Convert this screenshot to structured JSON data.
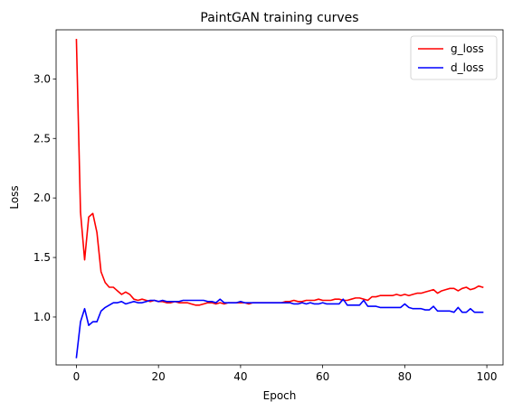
{
  "chart_data": {
    "type": "line",
    "title": "PaintGAN training curves",
    "xlabel": "Epoch",
    "ylabel": "Loss",
    "xlim": [
      -4.95,
      103.95
    ],
    "ylim": [
      0.5975,
      3.4125
    ],
    "xticks": [
      0,
      20,
      40,
      60,
      80,
      100
    ],
    "yticks": [
      1.0,
      1.5,
      2.0,
      2.5,
      3.0
    ],
    "ytick_labels": [
      "1.0",
      "1.5",
      "2.0",
      "2.5",
      "3.0"
    ],
    "grid": false,
    "legend_position": "top-right",
    "series": [
      {
        "name": "g_loss",
        "color": "#ff0000",
        "x": [
          0,
          1,
          2,
          3,
          4,
          5,
          6,
          7,
          8,
          9,
          10,
          11,
          12,
          13,
          14,
          15,
          16,
          17,
          18,
          19,
          20,
          21,
          22,
          23,
          24,
          25,
          26,
          27,
          28,
          29,
          30,
          31,
          32,
          33,
          34,
          35,
          36,
          37,
          38,
          39,
          40,
          41,
          42,
          43,
          44,
          45,
          46,
          47,
          48,
          49,
          50,
          51,
          52,
          53,
          54,
          55,
          56,
          57,
          58,
          59,
          60,
          61,
          62,
          63,
          64,
          65,
          66,
          67,
          68,
          69,
          70,
          71,
          72,
          73,
          74,
          75,
          76,
          77,
          78,
          79,
          80,
          81,
          82,
          83,
          84,
          85,
          86,
          87,
          88,
          89,
          90,
          91,
          92,
          93,
          94,
          95,
          96,
          97,
          98,
          99
        ],
        "values": [
          3.33,
          1.88,
          1.48,
          1.84,
          1.87,
          1.71,
          1.38,
          1.29,
          1.25,
          1.25,
          1.22,
          1.19,
          1.21,
          1.19,
          1.15,
          1.14,
          1.15,
          1.14,
          1.13,
          1.14,
          1.13,
          1.13,
          1.12,
          1.12,
          1.13,
          1.12,
          1.12,
          1.12,
          1.11,
          1.1,
          1.1,
          1.11,
          1.12,
          1.12,
          1.11,
          1.12,
          1.11,
          1.12,
          1.12,
          1.12,
          1.12,
          1.12,
          1.11,
          1.12,
          1.12,
          1.12,
          1.12,
          1.12,
          1.12,
          1.12,
          1.12,
          1.13,
          1.13,
          1.14,
          1.13,
          1.13,
          1.14,
          1.14,
          1.14,
          1.15,
          1.14,
          1.14,
          1.14,
          1.15,
          1.15,
          1.14,
          1.14,
          1.15,
          1.16,
          1.16,
          1.15,
          1.14,
          1.17,
          1.17,
          1.18,
          1.18,
          1.18,
          1.18,
          1.19,
          1.18,
          1.19,
          1.18,
          1.19,
          1.2,
          1.2,
          1.21,
          1.22,
          1.23,
          1.2,
          1.22,
          1.23,
          1.24,
          1.24,
          1.22,
          1.24,
          1.25,
          1.23,
          1.24,
          1.26,
          1.25
        ]
      },
      {
        "name": "d_loss",
        "color": "#0000ff",
        "x": [
          0,
          1,
          2,
          3,
          4,
          5,
          6,
          7,
          8,
          9,
          10,
          11,
          12,
          13,
          14,
          15,
          16,
          17,
          18,
          19,
          20,
          21,
          22,
          23,
          24,
          25,
          26,
          27,
          28,
          29,
          30,
          31,
          32,
          33,
          34,
          35,
          36,
          37,
          38,
          39,
          40,
          41,
          42,
          43,
          44,
          45,
          46,
          47,
          48,
          49,
          50,
          51,
          52,
          53,
          54,
          55,
          56,
          57,
          58,
          59,
          60,
          61,
          62,
          63,
          64,
          65,
          66,
          67,
          68,
          69,
          70,
          71,
          72,
          73,
          74,
          75,
          76,
          77,
          78,
          79,
          80,
          81,
          82,
          83,
          84,
          85,
          86,
          87,
          88,
          89,
          90,
          91,
          92,
          93,
          94,
          95,
          96,
          97,
          98,
          99
        ],
        "values": [
          0.66,
          0.96,
          1.07,
          0.93,
          0.96,
          0.96,
          1.05,
          1.08,
          1.1,
          1.12,
          1.12,
          1.13,
          1.11,
          1.12,
          1.13,
          1.12,
          1.12,
          1.13,
          1.14,
          1.14,
          1.13,
          1.14,
          1.13,
          1.13,
          1.13,
          1.13,
          1.14,
          1.14,
          1.14,
          1.14,
          1.14,
          1.14,
          1.13,
          1.13,
          1.12,
          1.15,
          1.12,
          1.12,
          1.12,
          1.12,
          1.13,
          1.12,
          1.12,
          1.12,
          1.12,
          1.12,
          1.12,
          1.12,
          1.12,
          1.12,
          1.12,
          1.12,
          1.12,
          1.11,
          1.11,
          1.12,
          1.11,
          1.12,
          1.11,
          1.11,
          1.12,
          1.11,
          1.11,
          1.11,
          1.11,
          1.15,
          1.1,
          1.1,
          1.1,
          1.1,
          1.14,
          1.09,
          1.09,
          1.09,
          1.08,
          1.08,
          1.08,
          1.08,
          1.08,
          1.08,
          1.11,
          1.08,
          1.07,
          1.07,
          1.07,
          1.06,
          1.06,
          1.09,
          1.05,
          1.05,
          1.05,
          1.05,
          1.04,
          1.08,
          1.04,
          1.04,
          1.07,
          1.04,
          1.04,
          1.04
        ]
      }
    ]
  }
}
